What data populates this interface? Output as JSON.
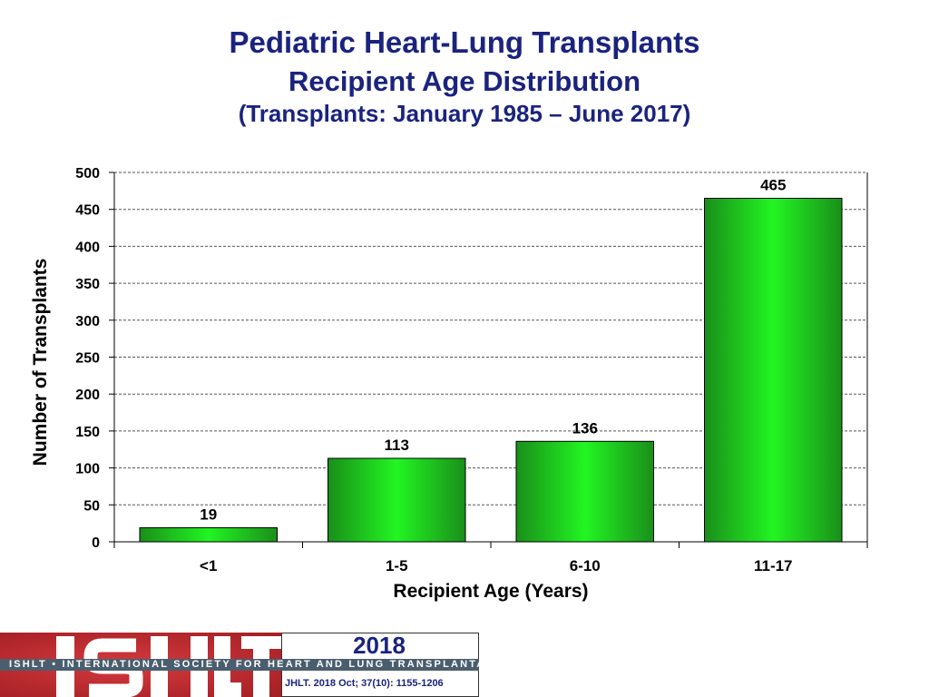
{
  "chart_data": {
    "type": "bar",
    "title": "Pediatric Heart-Lung Transplants",
    "subtitle": "Recipient Age Distribution",
    "subtitle2": "(Transplants: January 1985 – June 2017)",
    "categories": [
      "<1",
      "1-5",
      "6-10",
      "11-17"
    ],
    "values": [
      19,
      113,
      136,
      465
    ],
    "xlabel": "Recipient Age (Years)",
    "ylabel": "Number of Transplants",
    "ylim": [
      0,
      500
    ],
    "yticks": [
      0,
      50,
      100,
      150,
      200,
      250,
      300,
      350,
      400,
      450,
      500
    ],
    "grid": true,
    "bar_color": "#22ee22",
    "bar_edge_color": "#1a8f1a"
  },
  "footer": {
    "logo_text": "ISHLT",
    "society": "ISHLT • INTERNATIONAL SOCIETY FOR HEART AND LUNG TRANSPLANTATION",
    "year": "2018",
    "citation": "JHLT. 2018 Oct; 37(10): 1155-1206"
  }
}
